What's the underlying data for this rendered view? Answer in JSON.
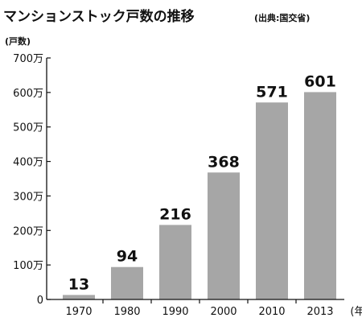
{
  "chart_data": {
    "type": "bar",
    "title": "マンションストック戸数の推移",
    "source": "(出典:国交省)",
    "ylabel": "(戸数)",
    "xunit": "(年)",
    "categories": [
      "1970",
      "1980",
      "1990",
      "2000",
      "2010",
      "2013"
    ],
    "values": [
      13,
      94,
      216,
      368,
      571,
      601
    ],
    "value_labels": [
      "13",
      "94",
      "216",
      "368",
      "571",
      "601"
    ],
    "ylim": [
      0,
      700
    ],
    "yticks": [
      0,
      100,
      200,
      300,
      400,
      500,
      600,
      700
    ],
    "ytick_labels": [
      "0",
      "100万",
      "200万",
      "300万",
      "400万",
      "500万",
      "600万",
      "700万"
    ],
    "grid": false,
    "legend": "none",
    "bar_color": "#a6a6a6",
    "text_color": "#111111"
  }
}
